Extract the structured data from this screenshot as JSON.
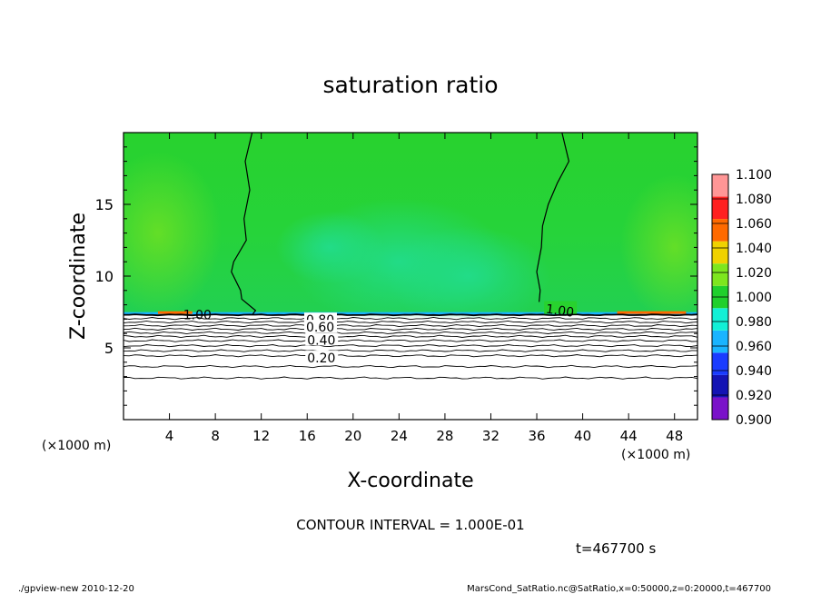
{
  "chart_data": {
    "type": "heatmap",
    "title": "saturation ratio",
    "xlabel": "X-coordinate",
    "ylabel": "Z-coordinate",
    "x_unit_label_left": "(×1000 m)",
    "x_unit_label_right": "(×1000 m)",
    "xlim": [
      0,
      50
    ],
    "ylim": [
      0,
      20
    ],
    "xticks": [
      4,
      8,
      12,
      16,
      20,
      24,
      28,
      32,
      36,
      40,
      44,
      48
    ],
    "yticks": [
      5,
      10,
      15
    ],
    "colorbar": {
      "levels": [
        0.9,
        0.92,
        0.94,
        0.96,
        0.98,
        1.0,
        1.02,
        1.04,
        1.06,
        1.08,
        1.1
      ],
      "labels": [
        "0.900",
        "0.920",
        "0.940",
        "0.960",
        "0.980",
        "1.000",
        "1.020",
        "1.040",
        "1.060",
        "1.080",
        "1.100"
      ],
      "colors": [
        "#7a12c9",
        "#1414b4",
        "#1a3cff",
        "#1ab4ff",
        "#12f0d6",
        "#20d02c",
        "#7ee61e",
        "#f0d200",
        "#ff6a00",
        "#ff2020",
        "#ff9696"
      ]
    },
    "contours": [
      {
        "level": 1.0,
        "label": "1.00",
        "description": "left boundary near x≈10-11, right boundary near x≈37"
      },
      {
        "level": 0.8,
        "label": "0.80",
        "z": 7.0
      },
      {
        "level": 0.6,
        "label": "0.60",
        "z": 6.6
      },
      {
        "level": 0.4,
        "label": "0.40",
        "z": 5.6
      },
      {
        "level": 0.2,
        "label": "0.20",
        "z": 4.4
      }
    ],
    "saturated_layer_base_z": 7.3,
    "footer": {
      "contour_interval": "CONTOUR INTERVAL = 1.000E-01",
      "time": "t=467700 s",
      "program": "./gpview-new   2010-12-20",
      "source": "MarsCond_SatRatio.nc@SatRatio,x=0:50000,z=0:20000,t=467700"
    }
  }
}
